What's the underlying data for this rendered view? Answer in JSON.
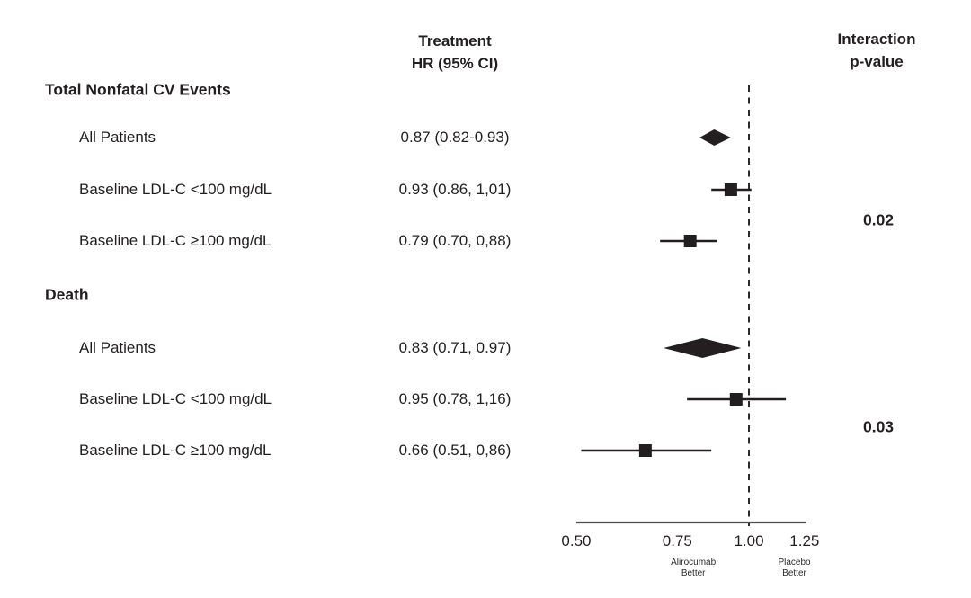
{
  "chart_data": {
    "type": "forest",
    "title": "",
    "columns": {
      "hr_header": [
        "Treatment",
        "HR (95% CI)"
      ],
      "p_header": [
        "Interaction",
        "p-value"
      ]
    },
    "x_axis": {
      "scale": "log",
      "range": [
        0.5,
        1.25
      ],
      "tick_values": [
        0.5,
        0.75,
        1.0,
        1.25
      ],
      "tick_labels": [
        "0.50",
        "0.75",
        "1.00",
        "1.25"
      ],
      "reference_line": 1.0
    },
    "annotations": {
      "left": {
        "lines": [
          "Alirocumab",
          "Better"
        ],
        "x": 0.8
      },
      "right": {
        "lines": [
          "Placebo",
          "Better"
        ],
        "x": 1.2
      }
    },
    "groups": [
      {
        "label": "Total Nonfatal CV Events",
        "interaction_p_value": "0.02",
        "rows": [
          {
            "label": "All Patients",
            "hr_text": "0.87 (0.82-0.93)",
            "hr": 0.87,
            "ci_low": 0.82,
            "ci_high": 0.93,
            "marker": "diamond"
          },
          {
            "label": "Baseline LDL-C <100 mg/dL",
            "hr_text": "0.93 (0.86, 1,01)",
            "hr": 0.93,
            "ci_low": 0.86,
            "ci_high": 1.01,
            "marker": "square"
          },
          {
            "label": "Baseline LDL-C ≥100 mg/dL",
            "hr_text": "0.79 (0.70, 0,88)",
            "hr": 0.79,
            "ci_low": 0.7,
            "ci_high": 0.88,
            "marker": "square"
          }
        ]
      },
      {
        "label": "Death",
        "interaction_p_value": "0.03",
        "rows": [
          {
            "label": "All Patients",
            "hr_text": "0.83 (0.71, 0.97)",
            "hr": 0.83,
            "ci_low": 0.71,
            "ci_high": 0.97,
            "marker": "diamond"
          },
          {
            "label": "Baseline LDL-C <100 mg/dL",
            "hr_text": "0.95 (0.78, 1,16)",
            "hr": 0.95,
            "ci_low": 0.78,
            "ci_high": 1.16,
            "marker": "square"
          },
          {
            "label": "Baseline LDL-C ≥100 mg/dL",
            "hr_text": "0.66 (0.51, 0,86)",
            "hr": 0.66,
            "ci_low": 0.51,
            "ci_high": 0.86,
            "marker": "square"
          }
        ]
      }
    ],
    "colors": {
      "ink": "#231f20",
      "axis": "#4d4d4d",
      "background": "#ffffff"
    }
  }
}
